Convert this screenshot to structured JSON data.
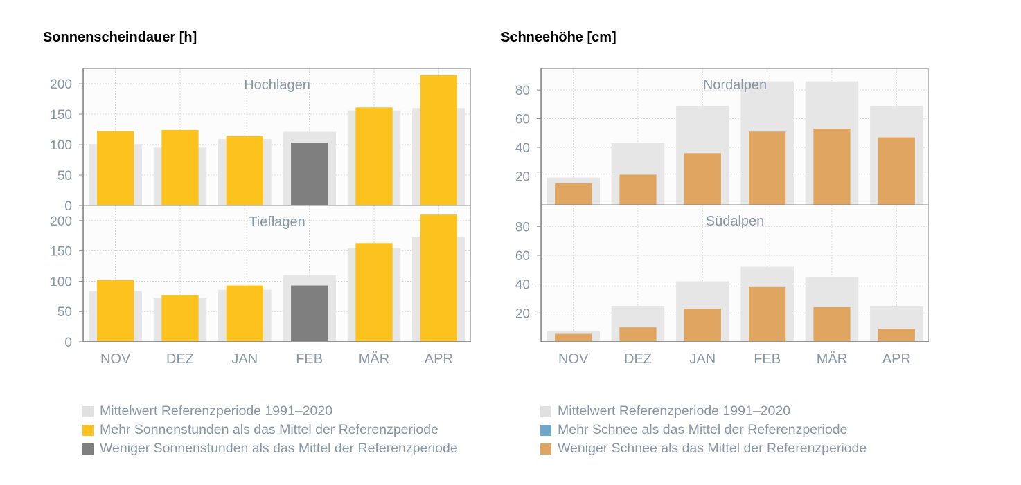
{
  "colors": {
    "reference": "#e6e6e6",
    "above": "#fcc31e",
    "below_sun": "#7f7f7f",
    "above_snow": "#6ea7c7",
    "below_snow": "#e1a562",
    "label": "#8896a6",
    "axis": "#888888",
    "grid": "#d5d5d5"
  },
  "chart_data": [
    {
      "type": "bar",
      "title": "Sonnenscheindauer [h]",
      "categories": [
        "NOV",
        "DEZ",
        "JAN",
        "FEB",
        "MÄR",
        "APR"
      ],
      "grid": true,
      "panels": [
        {
          "label": "Hochlagen",
          "ylim": [
            0,
            225
          ],
          "yticks": [
            0,
            50,
            100,
            150,
            200
          ],
          "reference": [
            101,
            95,
            109,
            121,
            156,
            160
          ],
          "values": [
            122,
            124,
            114,
            103,
            161,
            214
          ]
        },
        {
          "label": "Tieflagen",
          "ylim": [
            0,
            225
          ],
          "yticks": [
            0,
            50,
            100,
            150,
            200
          ],
          "reference": [
            84,
            73,
            86,
            110,
            154,
            173
          ],
          "values": [
            102,
            77,
            93,
            93,
            163,
            210
          ]
        }
      ],
      "legend": [
        {
          "label": "Mittelwert Referenzperiode 1991–2020",
          "color": "#e0e0e0"
        },
        {
          "label": "Mehr Sonnenstunden als das Mittel der Referenzperiode",
          "color": "#fcc31e"
        },
        {
          "label": "Weniger Sonnenstunden als das Mittel der Referenzperiode",
          "color": "#7f7f7f"
        }
      ]
    },
    {
      "type": "bar",
      "title": "Schneehöhe [cm]",
      "categories": [
        "NOV",
        "DEZ",
        "JAN",
        "FEB",
        "MÄR",
        "APR"
      ],
      "grid": true,
      "panels": [
        {
          "label": "Nordalpen",
          "ylim": [
            0,
            95
          ],
          "yticks": [
            20,
            40,
            60,
            80
          ],
          "reference": [
            19,
            43,
            69,
            86,
            86,
            69
          ],
          "values": [
            15,
            21,
            36,
            51,
            53,
            47
          ]
        },
        {
          "label": "Südalpen",
          "ylim": [
            0,
            95
          ],
          "yticks": [
            20,
            40,
            60,
            80
          ],
          "reference": [
            7.5,
            25,
            42,
            52,
            45,
            24.5
          ],
          "values": [
            5.5,
            10,
            23,
            38,
            24,
            9
          ]
        }
      ],
      "legend": [
        {
          "label": "Mittelwert Referenzperiode 1991–2020",
          "color": "#e0e0e0"
        },
        {
          "label": "Mehr Schnee als das Mittel der Referenzperiode",
          "color": "#6ea7c7"
        },
        {
          "label": "Weniger Schnee als das Mittel der Referenzperiode",
          "color": "#e1a562"
        }
      ]
    }
  ]
}
